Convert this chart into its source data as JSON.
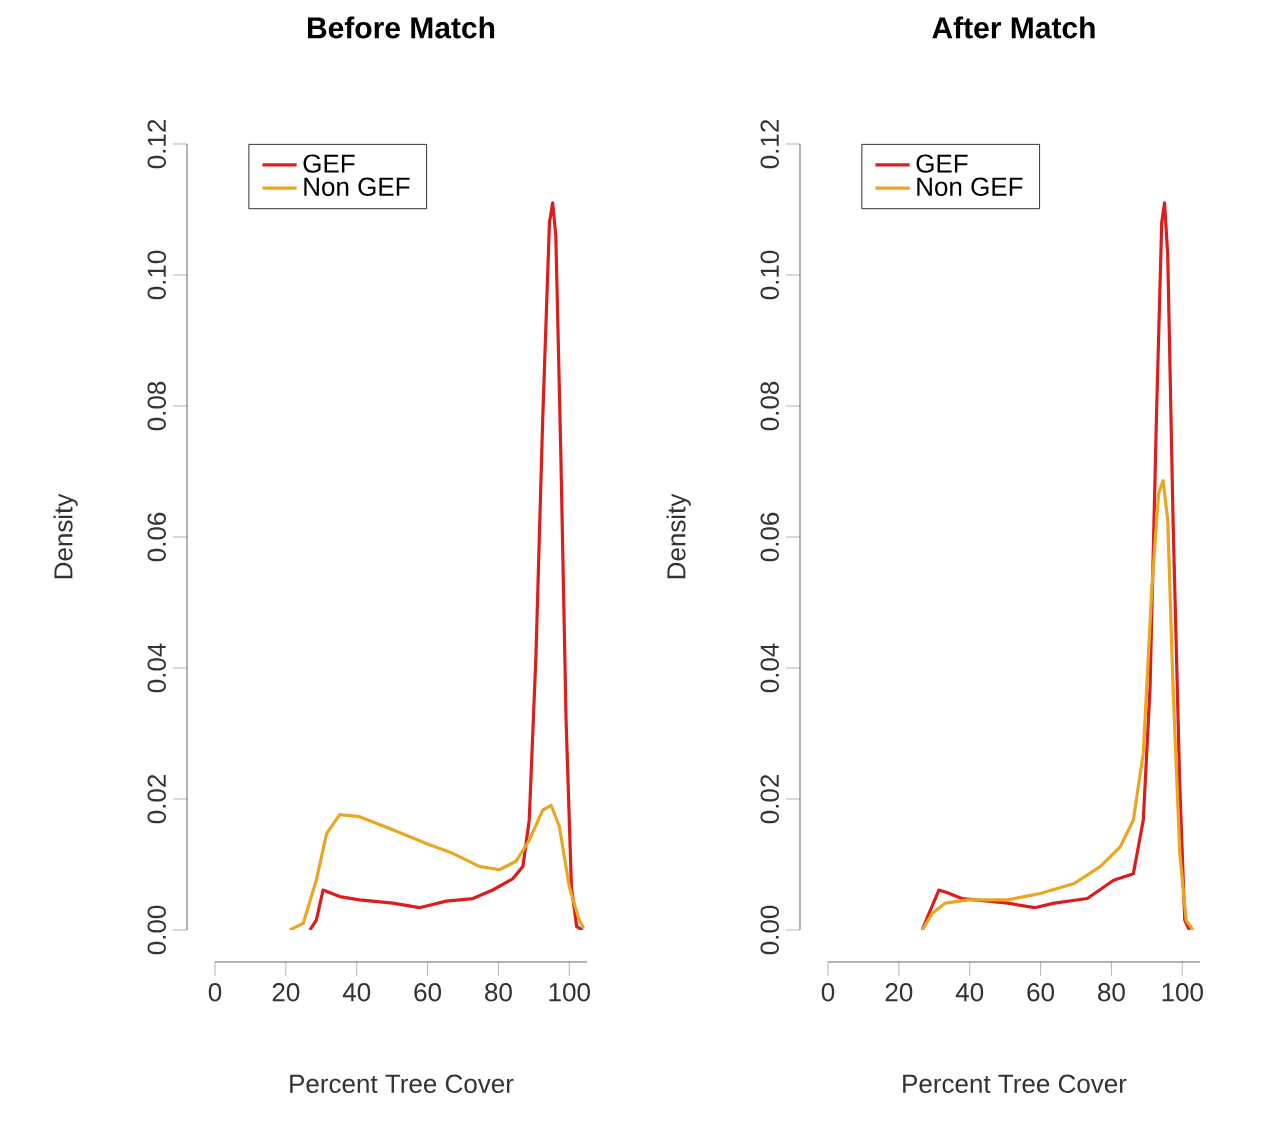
{
  "chart_data": [
    {
      "type": "line",
      "title": "Before Match",
      "xlabel": "Percent Tree Cover",
      "ylabel": "Density",
      "legend": "top left",
      "xlim": [
        0,
        105
      ],
      "ylim": [
        0,
        0.12
      ],
      "xticks": [
        0,
        20,
        40,
        60,
        80,
        100
      ],
      "yticks": [
        {
          "value": 0,
          "label": "0.00"
        },
        {
          "value": 0.02,
          "label": "0.02"
        },
        {
          "value": 0.04,
          "label": "0.04"
        },
        {
          "value": 0.06,
          "label": "0.06"
        },
        {
          "value": 0.08,
          "label": "0.08"
        },
        {
          "value": 0.1,
          "label": "0.10"
        },
        {
          "value": 0.12,
          "label": "0.12"
        }
      ],
      "series": [
        {
          "name": "GEF",
          "color": "#dd1c1c",
          "x": [
            26.8,
            28.6,
            30.5,
            35.2,
            40.8,
            50.2,
            57.7,
            65.3,
            72.8,
            78.4,
            84,
            86.9,
            88.7,
            90.6,
            92.5,
            94.4,
            95.3,
            96.2,
            97.6,
            99.1,
            100.6,
            102.1,
            103.8
          ],
          "values": [
            0,
            0.0015,
            0.0061,
            0.0051,
            0.0046,
            0.0041,
            0.0034,
            0.0044,
            0.0048,
            0.0061,
            0.0078,
            0.0097,
            0.0168,
            0.042,
            0.078,
            0.108,
            0.111,
            0.106,
            0.073,
            0.032,
            0.0066,
            0.0005,
            0
          ]
        },
        {
          "name": "Non GEF",
          "color": "#e8a623",
          "x": [
            21.1,
            24.9,
            28.6,
            31.5,
            35.2,
            40.8,
            50.2,
            59.6,
            67.1,
            74.6,
            80.3,
            85,
            88.7,
            92.5,
            94.9,
            97.2,
            100,
            102.8,
            104.1
          ],
          "values": [
            0,
            0.001,
            0.0076,
            0.0147,
            0.0176,
            0.0173,
            0.0153,
            0.0132,
            0.0117,
            0.0097,
            0.0092,
            0.0105,
            0.0137,
            0.0183,
            0.019,
            0.0158,
            0.0066,
            0.0015,
            0.0003
          ]
        }
      ]
    },
    {
      "type": "line",
      "title": "After Match",
      "xlabel": "Percent Tree Cover",
      "ylabel": "Density",
      "legend": "top left",
      "xlim": [
        0,
        105
      ],
      "ylim": [
        0,
        0.12
      ],
      "xticks": [
        0,
        20,
        40,
        60,
        80,
        100
      ],
      "yticks": [
        {
          "value": 0,
          "label": "0.00"
        },
        {
          "value": 0.02,
          "label": "0.02"
        },
        {
          "value": 0.04,
          "label": "0.04"
        },
        {
          "value": 0.06,
          "label": "0.06"
        },
        {
          "value": 0.08,
          "label": "0.08"
        },
        {
          "value": 0.1,
          "label": "0.10"
        },
        {
          "value": 0.12,
          "label": "0.12"
        }
      ],
      "series": [
        {
          "name": "GEF",
          "color": "#dd1c1c",
          "x": [
            26.6,
            28.5,
            31.3,
            34.1,
            37.8,
            45.3,
            50.8,
            58.3,
            63.9,
            73.2,
            80.6,
            86.2,
            89,
            90.9,
            92.7,
            94.2,
            95,
            95.9,
            97.4,
            99.3,
            100.7,
            102
          ],
          "values": [
            0,
            0.0025,
            0.0061,
            0.0056,
            0.0048,
            0.0044,
            0.0041,
            0.0034,
            0.0041,
            0.0048,
            0.0076,
            0.0086,
            0.0168,
            0.037,
            0.078,
            0.108,
            0.111,
            0.103,
            0.0625,
            0.0219,
            0.0015,
            0
          ]
        },
        {
          "name": "Non GEF",
          "color": "#e8a623",
          "x": [
            26.6,
            29.4,
            33.1,
            39.7,
            50.8,
            60.1,
            69.5,
            76.9,
            82.5,
            86.2,
            89,
            91.4,
            93.3,
            94.6,
            95.9,
            97.4,
            99.3,
            101.1,
            103
          ],
          "values": [
            0,
            0.0025,
            0.0041,
            0.0046,
            0.0046,
            0.0056,
            0.0071,
            0.0097,
            0.0127,
            0.0168,
            0.027,
            0.052,
            0.0666,
            0.0686,
            0.0625,
            0.037,
            0.0117,
            0.0015,
            0
          ]
        }
      ]
    }
  ]
}
